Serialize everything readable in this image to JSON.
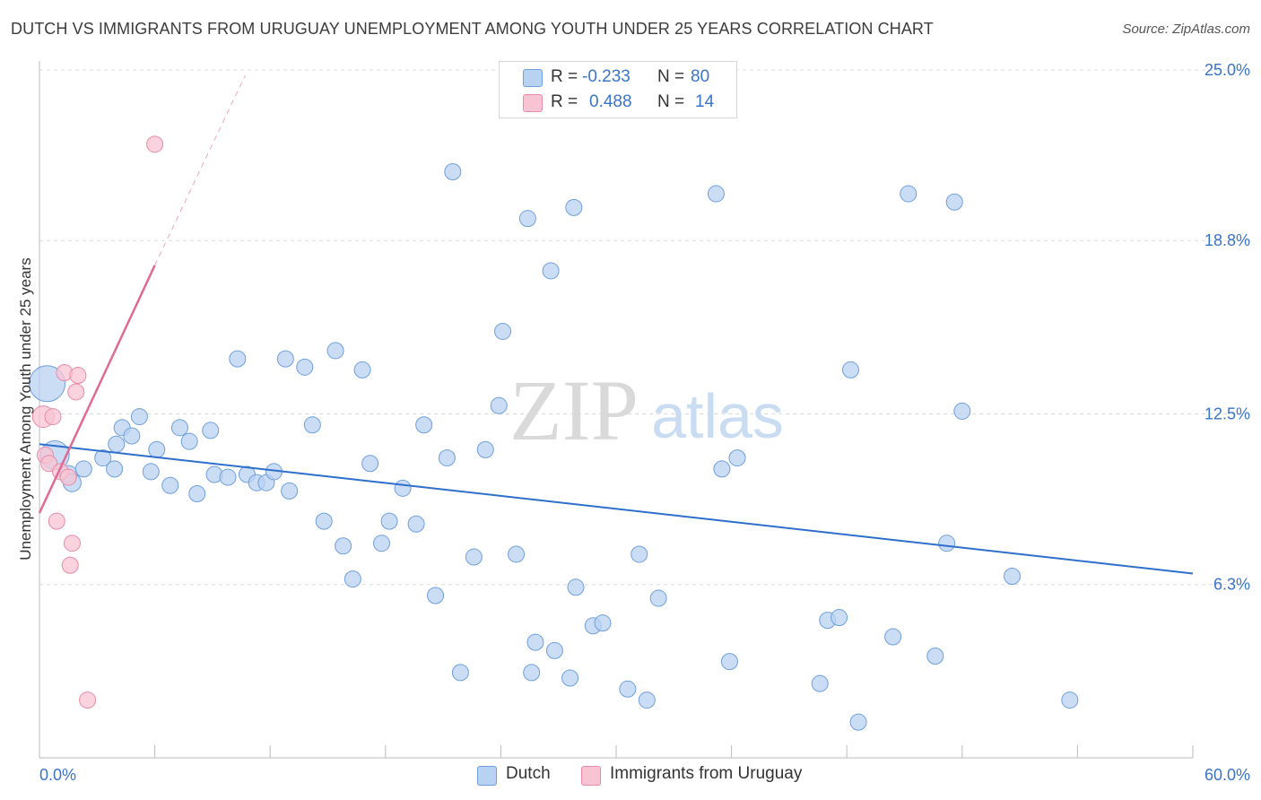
{
  "title": "DUTCH VS IMMIGRANTS FROM URUGUAY UNEMPLOYMENT AMONG YOUTH UNDER 25 YEARS CORRELATION CHART",
  "source": "Source: ZipAtlas.com",
  "watermark": {
    "zip": "ZIP",
    "atlas": "atlas"
  },
  "colors": {
    "dutch_fill": "#b8d2f2",
    "dutch_stroke": "#6f9fdc",
    "dutch_line": "#2f6fcc",
    "uruguay_fill": "#f8c4d3",
    "uruguay_stroke": "#e98aa8",
    "uruguay_line": "#e06a94",
    "axis_text": "#3a74c8",
    "grid": "#dcdcdc"
  },
  "legend": {
    "rows": [
      {
        "r_label": "R =",
        "r_value": "-0.233",
        "n_label": "N =",
        "n_value": "80"
      },
      {
        "r_label": "R =",
        "r_value": "0.488",
        "n_label": "N =",
        "n_value": "14"
      }
    ]
  },
  "bottom_legend": {
    "dutch": "Dutch",
    "uruguay": "Immigrants from Uruguay"
  },
  "chart_data": {
    "type": "scatter",
    "ylabel": "Unemployment Among Youth under 25 years",
    "xlim": [
      0,
      60
    ],
    "ylim": [
      0,
      25
    ],
    "x_tick_labels": {
      "min": "0.0%",
      "max": "60.0%"
    },
    "y_ticks": [
      {
        "value": 6.3,
        "label": "6.3%"
      },
      {
        "value": 12.5,
        "label": "12.5%"
      },
      {
        "value": 18.8,
        "label": "18.8%"
      },
      {
        "value": 25.0,
        "label": "25.0%"
      }
    ],
    "series": [
      {
        "name": "Dutch",
        "r": -0.233,
        "n": 80,
        "trend": {
          "x": [
            0,
            60
          ],
          "y": [
            11.4,
            6.7
          ]
        },
        "points": [
          [
            0.4,
            13.6,
            20
          ],
          [
            0.8,
            11.0,
            16
          ],
          [
            1.5,
            10.3,
            10
          ],
          [
            1.7,
            10.0,
            10
          ],
          [
            2.3,
            10.5,
            9
          ],
          [
            3.3,
            10.9,
            9
          ],
          [
            4.0,
            11.4,
            9
          ],
          [
            3.9,
            10.5,
            9
          ],
          [
            4.3,
            12.0,
            9
          ],
          [
            4.8,
            11.7,
            9
          ],
          [
            5.2,
            12.4,
            9
          ],
          [
            5.8,
            10.4,
            9
          ],
          [
            6.1,
            11.2,
            9
          ],
          [
            6.8,
            9.9,
            9
          ],
          [
            7.3,
            12.0,
            9
          ],
          [
            7.8,
            11.5,
            9
          ],
          [
            8.2,
            9.6,
            9
          ],
          [
            8.9,
            11.9,
            9
          ],
          [
            9.1,
            10.3,
            9
          ],
          [
            9.8,
            10.2,
            9
          ],
          [
            10.3,
            14.5,
            9
          ],
          [
            10.8,
            10.3,
            9
          ],
          [
            11.3,
            10.0,
            9
          ],
          [
            11.8,
            10.0,
            9
          ],
          [
            12.2,
            10.4,
            9
          ],
          [
            12.8,
            14.5,
            9
          ],
          [
            13.0,
            9.7,
            9
          ],
          [
            13.8,
            14.2,
            9
          ],
          [
            14.2,
            12.1,
            9
          ],
          [
            14.8,
            8.6,
            9
          ],
          [
            15.4,
            14.8,
            9
          ],
          [
            15.8,
            7.7,
            9
          ],
          [
            16.3,
            6.5,
            9
          ],
          [
            16.8,
            14.1,
            9
          ],
          [
            17.2,
            10.7,
            9
          ],
          [
            17.8,
            7.8,
            9
          ],
          [
            18.2,
            8.6,
            9
          ],
          [
            18.9,
            9.8,
            9
          ],
          [
            19.6,
            8.5,
            9
          ],
          [
            20.0,
            12.1,
            9
          ],
          [
            20.6,
            5.9,
            9
          ],
          [
            21.2,
            10.9,
            9
          ],
          [
            21.5,
            21.3,
            9
          ],
          [
            21.9,
            3.1,
            9
          ],
          [
            22.6,
            7.3,
            9
          ],
          [
            23.2,
            11.2,
            9
          ],
          [
            23.9,
            12.8,
            9
          ],
          [
            24.1,
            15.5,
            9
          ],
          [
            24.8,
            7.4,
            9
          ],
          [
            25.4,
            19.6,
            9
          ],
          [
            25.6,
            3.1,
            9
          ],
          [
            25.8,
            4.2,
            9
          ],
          [
            26.6,
            17.7,
            9
          ],
          [
            26.8,
            3.9,
            9
          ],
          [
            27.6,
            2.9,
            9
          ],
          [
            27.9,
            6.2,
            9
          ],
          [
            27.8,
            20.0,
            9
          ],
          [
            28.8,
            4.8,
            9
          ],
          [
            29.3,
            4.9,
            9
          ],
          [
            30.6,
            2.5,
            9
          ],
          [
            31.2,
            7.4,
            9
          ],
          [
            31.6,
            2.1,
            9
          ],
          [
            32.2,
            5.8,
            9
          ],
          [
            35.2,
            20.5,
            9
          ],
          [
            35.9,
            3.5,
            9
          ],
          [
            35.5,
            10.5,
            9
          ],
          [
            36.3,
            10.9,
            9
          ],
          [
            40.6,
            2.7,
            9
          ],
          [
            41.0,
            5.0,
            9
          ],
          [
            41.6,
            5.1,
            9
          ],
          [
            42.6,
            1.3,
            9
          ],
          [
            42.2,
            14.1,
            9
          ],
          [
            45.2,
            20.5,
            9
          ],
          [
            44.4,
            4.4,
            9
          ],
          [
            46.6,
            3.7,
            9
          ],
          [
            47.6,
            20.2,
            9
          ],
          [
            48.0,
            12.6,
            9
          ],
          [
            47.2,
            7.8,
            9
          ],
          [
            50.6,
            6.6,
            9
          ],
          [
            53.6,
            2.1,
            9
          ]
        ]
      },
      {
        "name": "Immigrants from Uruguay",
        "r": 0.488,
        "n": 14,
        "trend": {
          "x": [
            0,
            6.0
          ],
          "y": [
            8.9,
            17.9
          ]
        },
        "trend_dashed": {
          "x": [
            6.0,
            10.7
          ],
          "y": [
            17.9,
            24.8
          ]
        },
        "points": [
          [
            0.2,
            12.4,
            12
          ],
          [
            0.3,
            11.0,
            9
          ],
          [
            0.5,
            10.7,
            9
          ],
          [
            0.7,
            12.4,
            9
          ],
          [
            0.9,
            8.6,
            9
          ],
          [
            1.1,
            10.4,
            9
          ],
          [
            1.3,
            14.0,
            9
          ],
          [
            1.5,
            10.2,
            9
          ],
          [
            1.6,
            7.0,
            9
          ],
          [
            1.7,
            7.8,
            9
          ],
          [
            1.9,
            13.3,
            9
          ],
          [
            2.0,
            13.9,
            9
          ],
          [
            2.5,
            2.1,
            9
          ],
          [
            6.0,
            22.3,
            9
          ]
        ]
      }
    ]
  }
}
